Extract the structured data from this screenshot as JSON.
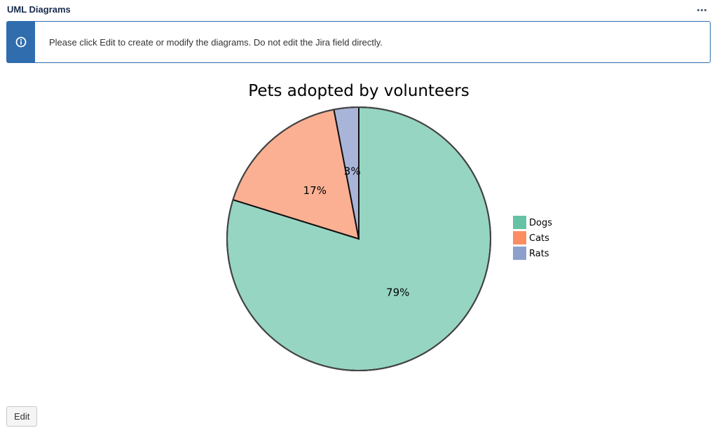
{
  "panel": {
    "title": "UML Diagrams",
    "more_icon": "more-horizontal-icon"
  },
  "banner": {
    "icon": "info-icon",
    "message": "Please click Edit to create or modify the diagrams. Do not edit the Jira field directly.",
    "accent_color": "#2f6dae"
  },
  "chart_data": {
    "type": "pie",
    "title": "Pets adopted by volunteers",
    "categories": [
      "Dogs",
      "Cats",
      "Rats"
    ],
    "values": [
      79,
      17,
      3
    ],
    "labels": [
      "79%",
      "17%",
      "3%"
    ],
    "colors": [
      "#97d5c3",
      "#fbb093",
      "#a9b5d8"
    ],
    "legend_colors": [
      "#66c2a5",
      "#fc8d62",
      "#8da0cb"
    ],
    "legend_position": "right"
  },
  "footer": {
    "edit_label": "Edit"
  }
}
